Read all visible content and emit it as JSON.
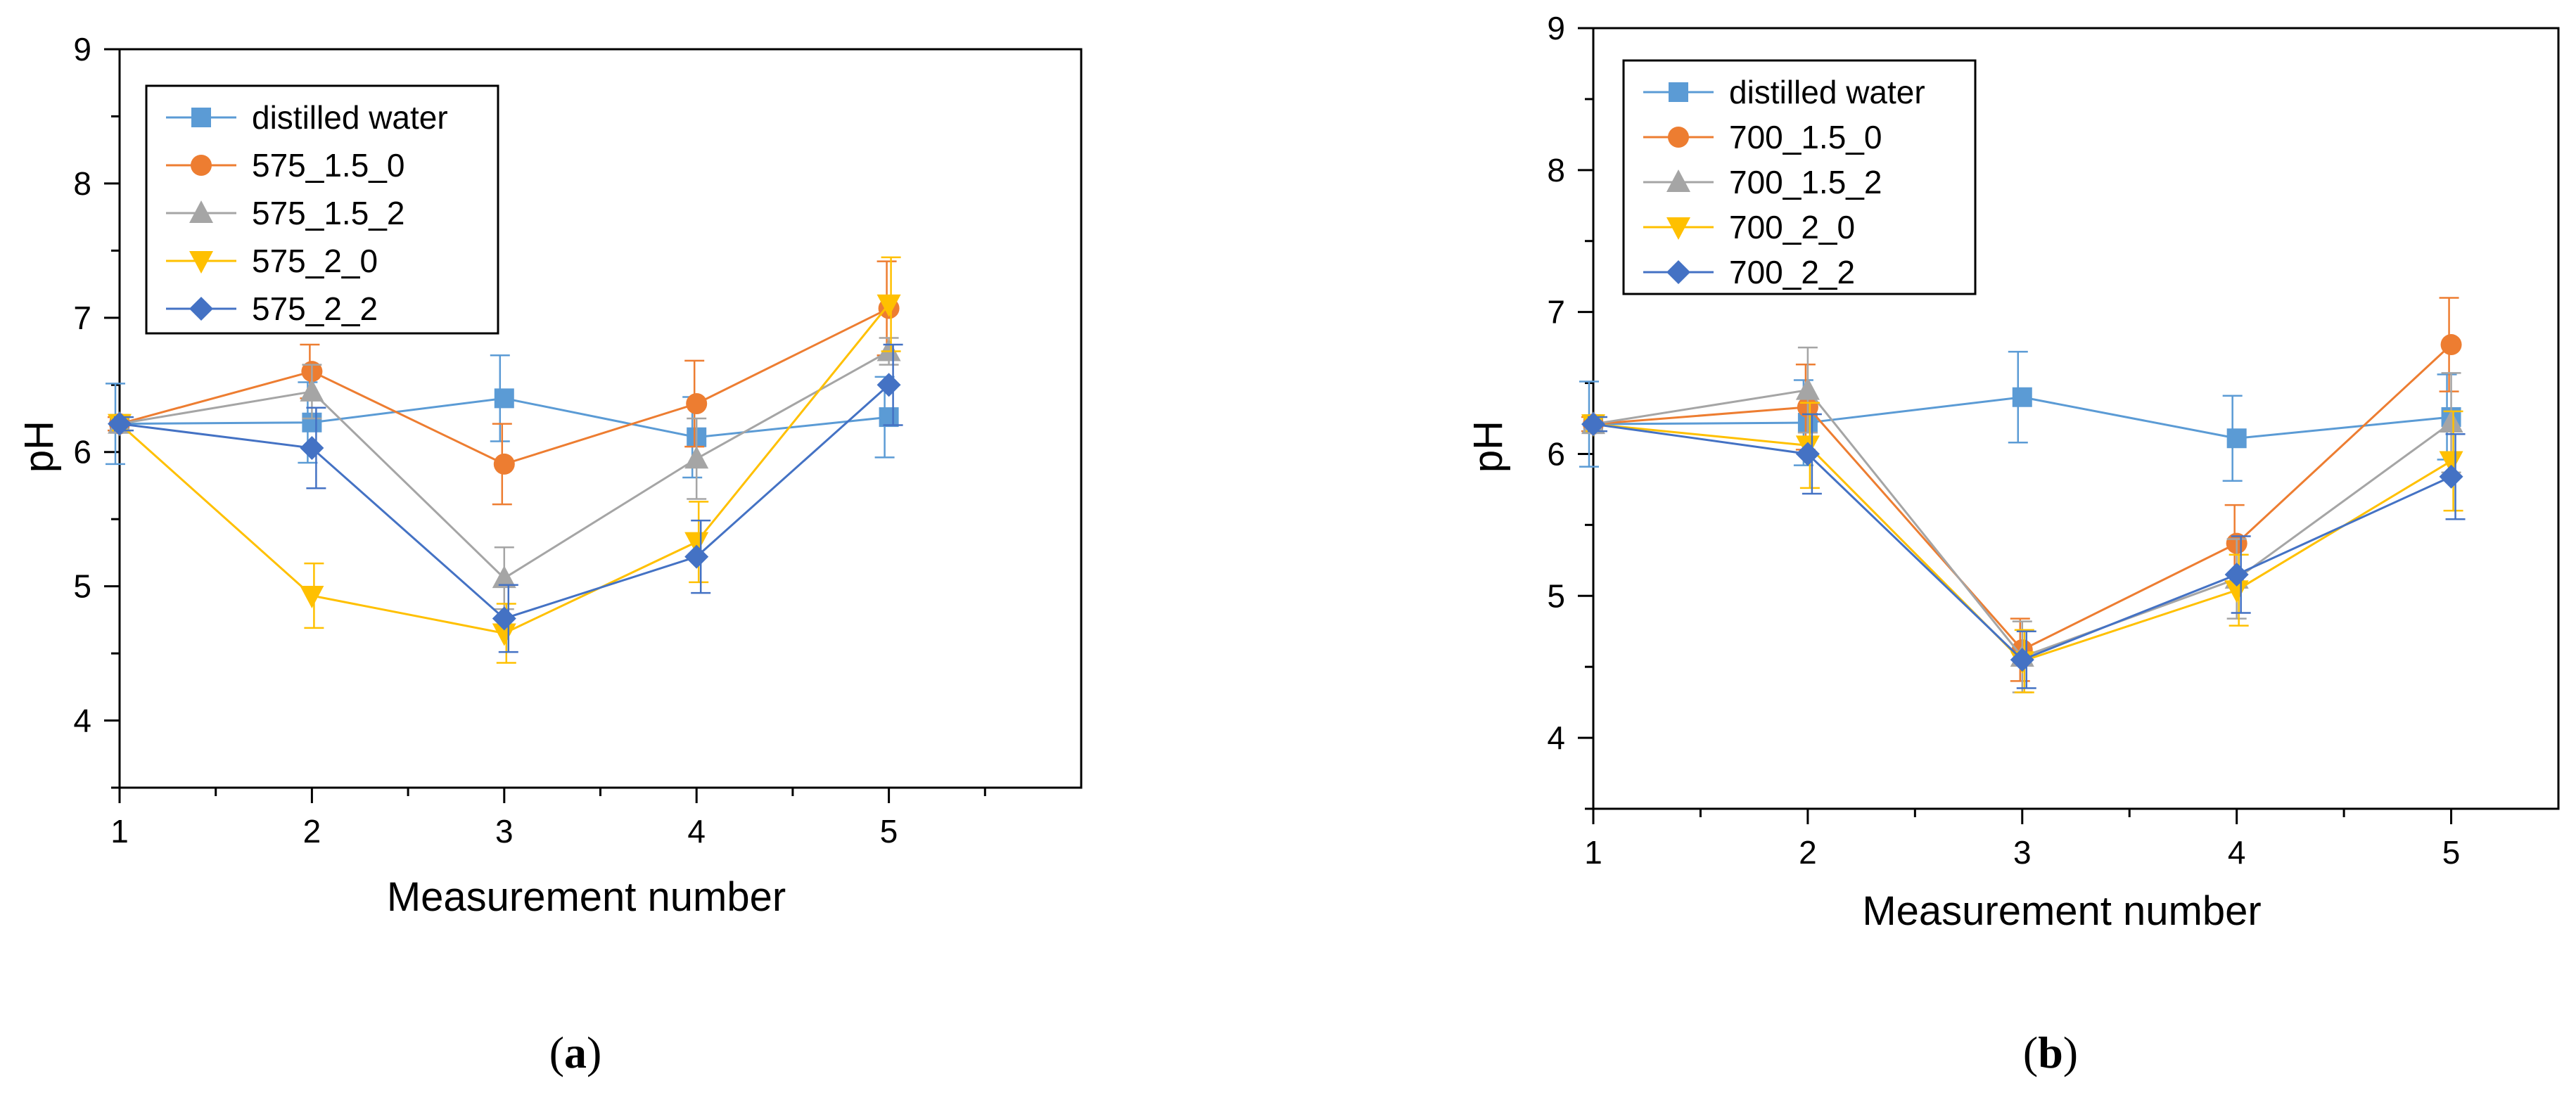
{
  "chart_data": [
    {
      "type": "line",
      "panel_label": "a",
      "xlabel": "Measurement number",
      "ylabel": "pH",
      "xlim": [
        1,
        6
      ],
      "ylim": [
        3.5,
        9
      ],
      "x_ticks": [
        1,
        2,
        3,
        4,
        5
      ],
      "y_ticks": [
        4,
        5,
        6,
        7,
        8,
        9
      ],
      "legend_position": "top-left",
      "x": [
        1,
        2,
        3,
        4,
        5
      ],
      "series": [
        {
          "name": "distilled water",
          "color": "#5B9BD5",
          "marker": "square",
          "values": [
            6.21,
            6.22,
            6.4,
            6.11,
            6.26
          ],
          "errors": [
            0.3,
            0.3,
            0.32,
            0.3,
            0.3
          ]
        },
        {
          "name": "575_1.5_0",
          "color": "#ED7D31",
          "marker": "circle",
          "values": [
            6.21,
            6.6,
            5.91,
            6.36,
            7.07
          ],
          "errors": [
            0.05,
            0.2,
            0.3,
            0.32,
            0.35
          ]
        },
        {
          "name": "575_1.5_2",
          "color": "#A5A5A5",
          "marker": "triangle-up",
          "values": [
            6.21,
            6.45,
            5.06,
            5.95,
            6.75
          ],
          "errors": [
            0.05,
            0.2,
            0.23,
            0.3,
            0.1
          ]
        },
        {
          "name": "575_2_0",
          "color": "#FFC000",
          "marker": "triangle-down",
          "values": [
            6.21,
            4.93,
            4.65,
            5.33,
            7.1
          ],
          "errors": [
            0.05,
            0.24,
            0.22,
            0.3,
            0.35
          ]
        },
        {
          "name": "575_2_2",
          "color": "#4472C4",
          "marker": "diamond",
          "values": [
            6.21,
            6.03,
            4.76,
            5.22,
            6.5
          ],
          "errors": [
            0.05,
            0.3,
            0.25,
            0.27,
            0.3
          ]
        }
      ]
    },
    {
      "type": "line",
      "panel_label": "b",
      "xlabel": "Measurement number",
      "ylabel": "pH",
      "xlim": [
        1,
        5.5
      ],
      "ylim": [
        3.5,
        9
      ],
      "x_ticks": [
        1,
        2,
        3,
        4,
        5
      ],
      "y_ticks": [
        4,
        5,
        6,
        7,
        8,
        9
      ],
      "legend_position": "top-left",
      "x": [
        1,
        2,
        3,
        4,
        5
      ],
      "series": [
        {
          "name": "distilled water",
          "color": "#5B9BD5",
          "marker": "square",
          "values": [
            6.21,
            6.22,
            6.4,
            6.11,
            6.26
          ],
          "errors": [
            0.3,
            0.3,
            0.32,
            0.3,
            0.3
          ]
        },
        {
          "name": "700_1.5_0",
          "color": "#ED7D31",
          "marker": "circle",
          "values": [
            6.21,
            6.33,
            4.62,
            5.37,
            6.77
          ],
          "errors": [
            0.05,
            0.3,
            0.22,
            0.27,
            0.33
          ]
        },
        {
          "name": "700_1.5_2",
          "color": "#A5A5A5",
          "marker": "triangle-up",
          "values": [
            6.21,
            6.45,
            4.57,
            5.12,
            6.22
          ],
          "errors": [
            0.05,
            0.3,
            0.25,
            0.28,
            0.35
          ]
        },
        {
          "name": "700_2_0",
          "color": "#FFC000",
          "marker": "triangle-down",
          "values": [
            6.21,
            6.06,
            4.54,
            5.04,
            5.95
          ],
          "errors": [
            0.05,
            0.3,
            0.22,
            0.25,
            0.35
          ]
        },
        {
          "name": "700_2_2",
          "color": "#4472C4",
          "marker": "diamond",
          "values": [
            6.21,
            6.0,
            4.55,
            5.15,
            5.84
          ],
          "errors": [
            0.05,
            0.28,
            0.2,
            0.27,
            0.3
          ]
        }
      ]
    }
  ]
}
